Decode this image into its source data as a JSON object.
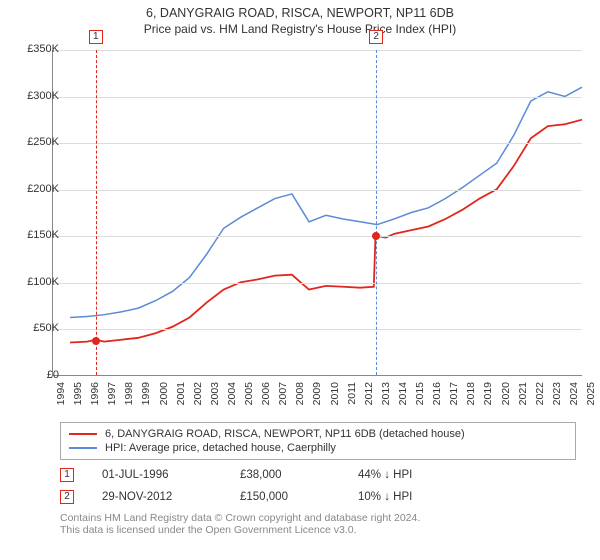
{
  "title_line1": "6, DANYGRAIG ROAD, RISCA, NEWPORT, NP11 6DB",
  "title_line2": "Price paid vs. HM Land Registry's House Price Index (HPI)",
  "chart": {
    "type": "line",
    "background_color": "#ffffff",
    "grid_color": "#dddddd",
    "axis_color": "#888888",
    "x_years": [
      1994,
      1995,
      1996,
      1997,
      1998,
      1999,
      2000,
      2001,
      2002,
      2003,
      2004,
      2005,
      2006,
      2007,
      2008,
      2009,
      2010,
      2011,
      2012,
      2013,
      2014,
      2015,
      2016,
      2017,
      2018,
      2019,
      2020,
      2021,
      2022,
      2023,
      2024,
      2025
    ],
    "x_min": 1994,
    "x_max": 2025,
    "y_min": 0,
    "y_max": 350,
    "y_step": 50,
    "y_unit": "£",
    "y_suffix": "K",
    "y_ticks": [
      "£0",
      "£50K",
      "£100K",
      "£150K",
      "£200K",
      "£250K",
      "£300K",
      "£350K"
    ],
    "series": [
      {
        "id": "property",
        "label": "6, DANYGRAIG ROAD, RISCA, NEWPORT, NP11 6DB (detached house)",
        "color": "#e1261c",
        "line_width": 1.8,
        "data": [
          [
            1995.0,
            35
          ],
          [
            1996.0,
            36
          ],
          [
            1996.5,
            38
          ],
          [
            1997.0,
            36
          ],
          [
            1998.0,
            38
          ],
          [
            1999.0,
            40
          ],
          [
            2000.0,
            45
          ],
          [
            2001.0,
            52
          ],
          [
            2002.0,
            62
          ],
          [
            2003.0,
            78
          ],
          [
            2004.0,
            92
          ],
          [
            2005.0,
            100
          ],
          [
            2006.0,
            103
          ],
          [
            2007.0,
            107
          ],
          [
            2008.0,
            108
          ],
          [
            2008.5,
            100
          ],
          [
            2009.0,
            92
          ],
          [
            2010.0,
            96
          ],
          [
            2011.0,
            95
          ],
          [
            2012.0,
            94
          ],
          [
            2012.8,
            95
          ],
          [
            2012.9,
            150
          ],
          [
            2013.5,
            148
          ],
          [
            2014.0,
            152
          ],
          [
            2015.0,
            156
          ],
          [
            2016.0,
            160
          ],
          [
            2017.0,
            168
          ],
          [
            2018.0,
            178
          ],
          [
            2019.0,
            190
          ],
          [
            2020.0,
            200
          ],
          [
            2021.0,
            225
          ],
          [
            2022.0,
            255
          ],
          [
            2023.0,
            268
          ],
          [
            2024.0,
            270
          ],
          [
            2025.0,
            275
          ]
        ]
      },
      {
        "id": "hpi",
        "label": "HPI: Average price, detached house, Caerphilly",
        "color": "#5b8bd4",
        "line_width": 1.5,
        "data": [
          [
            1995.0,
            62
          ],
          [
            1996.0,
            63
          ],
          [
            1997.0,
            65
          ],
          [
            1998.0,
            68
          ],
          [
            1999.0,
            72
          ],
          [
            2000.0,
            80
          ],
          [
            2001.0,
            90
          ],
          [
            2002.0,
            105
          ],
          [
            2003.0,
            130
          ],
          [
            2004.0,
            158
          ],
          [
            2005.0,
            170
          ],
          [
            2006.0,
            180
          ],
          [
            2007.0,
            190
          ],
          [
            2008.0,
            195
          ],
          [
            2008.5,
            180
          ],
          [
            2009.0,
            165
          ],
          [
            2010.0,
            172
          ],
          [
            2011.0,
            168
          ],
          [
            2012.0,
            165
          ],
          [
            2013.0,
            162
          ],
          [
            2014.0,
            168
          ],
          [
            2015.0,
            175
          ],
          [
            2016.0,
            180
          ],
          [
            2017.0,
            190
          ],
          [
            2018.0,
            202
          ],
          [
            2019.0,
            215
          ],
          [
            2020.0,
            228
          ],
          [
            2021.0,
            258
          ],
          [
            2022.0,
            295
          ],
          [
            2023.0,
            305
          ],
          [
            2024.0,
            300
          ],
          [
            2025.0,
            310
          ]
        ]
      }
    ],
    "sale_markers": [
      {
        "n": "1",
        "x": 1996.5,
        "y": 38,
        "color": "#e1261c"
      },
      {
        "n": "2",
        "x": 2012.9,
        "y": 150,
        "color": "#e1261c"
      }
    ],
    "vlines": [
      {
        "x": 1996.5,
        "color": "#e1261c"
      },
      {
        "x": 2012.9,
        "color": "#5b8bd4"
      }
    ]
  },
  "legend": {
    "border_color": "#aaaaaa",
    "items": [
      {
        "color": "#e1261c",
        "label": "6, DANYGRAIG ROAD, RISCA, NEWPORT, NP11 6DB (detached house)"
      },
      {
        "color": "#5b8bd4",
        "label": "HPI: Average price, detached house, Caerphilly"
      }
    ]
  },
  "sales": [
    {
      "n": "1",
      "color": "#e1261c",
      "date": "01-JUL-1996",
      "price": "£38,000",
      "delta": "44% ↓ HPI"
    },
    {
      "n": "2",
      "color": "#e1261c",
      "date": "29-NOV-2012",
      "price": "£150,000",
      "delta": "10% ↓ HPI"
    }
  ],
  "footer_line1": "Contains HM Land Registry data © Crown copyright and database right 2024.",
  "footer_line2": "This data is licensed under the Open Government Licence v3.0."
}
